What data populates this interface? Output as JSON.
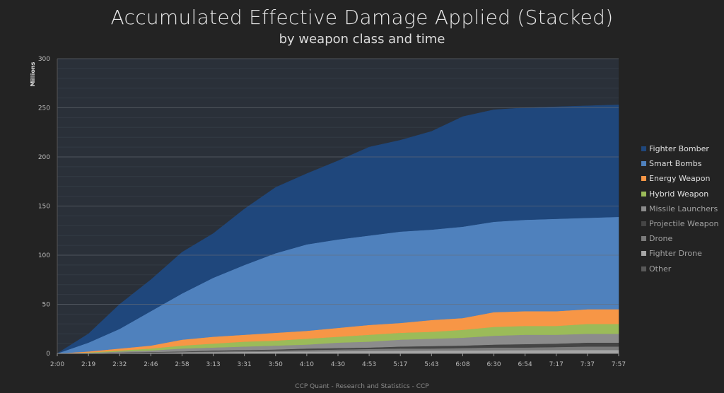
{
  "chart_data": {
    "type": "area",
    "stacked": true,
    "title": "Accumulated Effective Damage Applied (Stacked)",
    "subtitle": "by weapon class and time",
    "ylabel": "Millions",
    "xlabel": "",
    "ylim": [
      0,
      300
    ],
    "yticks": [
      "0",
      "50",
      "100",
      "150",
      "200",
      "250",
      "300"
    ],
    "x": [
      "2:00",
      "2:19",
      "2:32",
      "2:46",
      "2:58",
      "3:13",
      "3:31",
      "3:50",
      "4:10",
      "4:30",
      "4:53",
      "5:17",
      "5:43",
      "6:08",
      "6:30",
      "6:54",
      "7:17",
      "7:37",
      "7:57"
    ],
    "grid": true,
    "legend_position": "right",
    "series": [
      {
        "name": "Other",
        "color": "#595959",
        "values": [
          0,
          0,
          0.1,
          0.1,
          0.2,
          0.2,
          0.2,
          0.3,
          0.3,
          0.3,
          0.3,
          0.4,
          0.4,
          0.4,
          0.5,
          0.5,
          0.5,
          0.5,
          0.5
        ]
      },
      {
        "name": "Fighter Drone",
        "color": "#a6a6a6",
        "values": [
          0,
          0.1,
          0.4,
          0.7,
          0.8,
          1,
          1.3,
          1.5,
          1.7,
          1.9,
          2.2,
          2.3,
          2.6,
          2.6,
          2.7,
          2.8,
          2.9,
          3,
          3
        ]
      },
      {
        "name": "Drone",
        "color": "#7b7b7b",
        "values": [
          0,
          0.1,
          0.3,
          0.2,
          0.5,
          0.8,
          1,
          1.2,
          1.5,
          1.8,
          2,
          2.3,
          2,
          2.5,
          2.8,
          2.7,
          3.1,
          3.5,
          3.5
        ]
      },
      {
        "name": "Projectile Weapon",
        "color": "#454545",
        "values": [
          0,
          0.1,
          0.2,
          0.5,
          0.5,
          1,
          1,
          1,
          1.5,
          1.5,
          1.5,
          2,
          2.5,
          2.5,
          3,
          3.5,
          3.5,
          4,
          4
        ]
      },
      {
        "name": "Missile Launchers",
        "color": "#8c8c8c",
        "values": [
          0,
          0.2,
          1,
          1.5,
          3,
          3,
          3.5,
          4,
          4,
          5.5,
          6,
          7,
          7.5,
          8,
          9,
          9.5,
          9,
          9,
          9
        ]
      },
      {
        "name": "Hybrid Weapon",
        "color": "#9bbb59",
        "values": [
          0,
          0.5,
          1,
          2,
          3,
          4,
          5,
          5,
          6,
          6,
          7,
          7,
          7,
          8,
          9,
          9,
          9,
          10,
          10
        ]
      },
      {
        "name": "Energy Weapon",
        "color": "#f79646",
        "values": [
          0,
          1,
          2,
          3,
          6,
          7,
          7,
          8,
          8,
          9,
          10,
          10,
          12,
          12,
          15,
          15,
          15,
          15,
          15
        ]
      },
      {
        "name": "Smart Bombs",
        "color": "#4f81bd",
        "values": [
          0,
          9,
          20,
          35,
          47,
          60,
          71,
          81,
          88,
          90,
          91,
          93,
          92,
          93,
          92,
          93,
          94,
          93,
          94
        ]
      },
      {
        "name": "Fighter Bomber",
        "color": "#1f477c",
        "values": [
          0,
          9,
          25,
          32,
          42,
          45,
          57,
          67,
          72,
          80,
          90,
          93,
          100,
          112,
          114,
          114,
          114,
          114,
          114
        ]
      }
    ],
    "legend_order": [
      "Fighter Bomber",
      "Smart Bombs",
      "Energy Weapon",
      "Hybrid Weapon",
      "Missile Launchers",
      "Projectile Weapon",
      "Drone",
      "Fighter Drone",
      "Other"
    ]
  },
  "footer": "CCP Quant - Research and Statistics - CCP"
}
